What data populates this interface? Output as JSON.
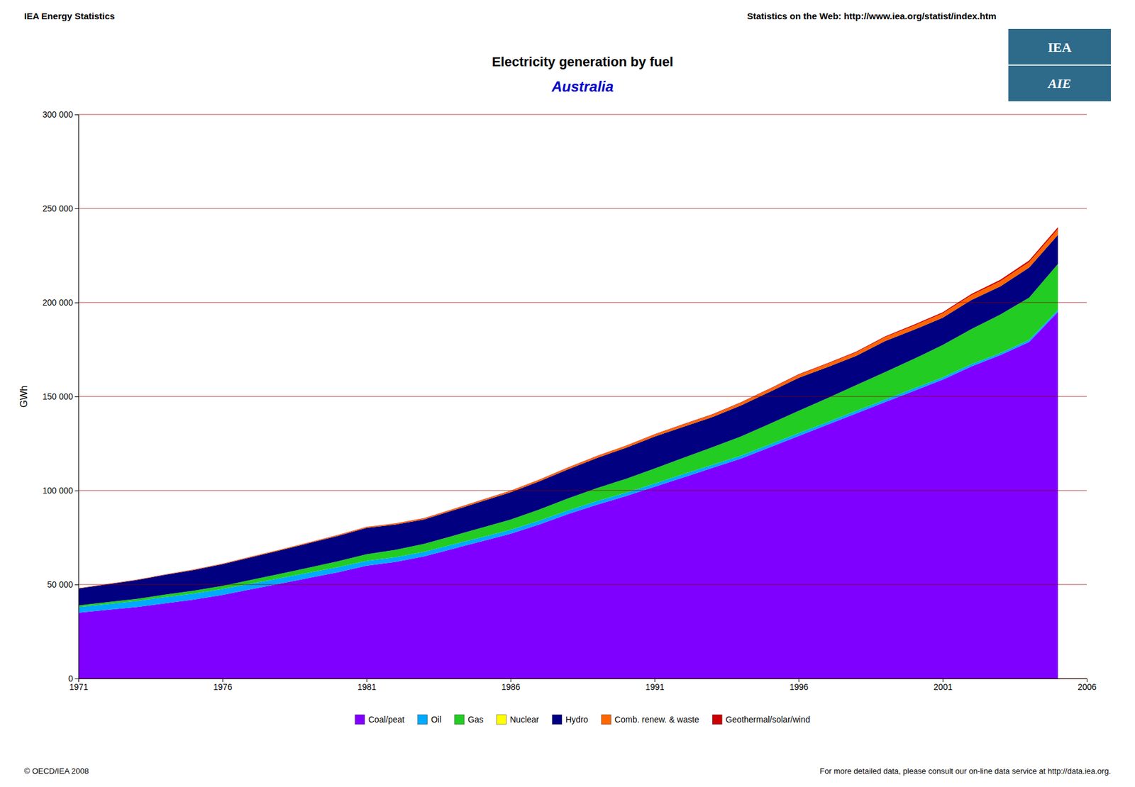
{
  "chart_data": {
    "type": "area",
    "stacked": true,
    "title": "Electricity generation by fuel",
    "subtitle": "Australia",
    "y_label": "GWh",
    "annotations": [
      "IEA Energy Statistics",
      "Statistics on the Web: http://www.iea.org/statist/index.htm",
      "© OECD/IEA 2008",
      "For more detailed data, please consult our on-line data service at http://data.iea.org.",
      "IEA",
      "AIE"
    ],
    "x": [
      1971,
      1972,
      1973,
      1974,
      1975,
      1976,
      1977,
      1978,
      1979,
      1980,
      1981,
      1982,
      1983,
      1984,
      1985,
      1986,
      1987,
      1988,
      1989,
      1990,
      1991,
      1992,
      1993,
      1994,
      1995,
      1996,
      1997,
      1998,
      1999,
      2000,
      2001,
      2002,
      2003,
      2004,
      2005
    ],
    "xlim": [
      1971,
      2006
    ],
    "xticks": [
      1971,
      1976,
      1981,
      1986,
      1991,
      1996,
      2001,
      2006
    ],
    "ylim": [
      0,
      300000
    ],
    "yticks": [
      0,
      {
        "value": 50000,
        "label": "50 000"
      },
      {
        "value": 100000,
        "label": "100 000"
      },
      {
        "value": 150000,
        "label": "150 000"
      },
      {
        "value": 200000,
        "label": "200 000"
      },
      {
        "value": 250000,
        "label": "250 000"
      },
      {
        "value": 300000,
        "label": "300 000"
      }
    ],
    "grid": true,
    "legend": "bottom",
    "series": [
      {
        "name": "Coal/peat",
        "color": "#8000FF",
        "values": [
          35000,
          36500,
          38000,
          40000,
          42000,
          44500,
          47500,
          50500,
          53500,
          56500,
          60000,
          62000,
          65000,
          69000,
          73000,
          77000,
          82000,
          87500,
          92500,
          97000,
          102000,
          107000,
          112000,
          117000,
          123000,
          129000,
          135000,
          141000,
          147000,
          153000,
          159000,
          166000,
          172000,
          179000,
          195000
        ]
      },
      {
        "name": "Oil",
        "color": "#00AAFF",
        "values": [
          3000,
          3100,
          3200,
          3300,
          3200,
          3100,
          3000,
          2900,
          2800,
          2700,
          2600,
          2500,
          2400,
          2300,
          2200,
          2100,
          2000,
          1900,
          1900,
          1800,
          1700,
          1700,
          1600,
          1600,
          1500,
          1500,
          1400,
          1400,
          1300,
          1300,
          1200,
          1200,
          1100,
          1100,
          1000
        ]
      },
      {
        "name": "Gas",
        "color": "#22CC22",
        "values": [
          900,
          1000,
          1100,
          1300,
          1500,
          1700,
          2000,
          2300,
          2700,
          3100,
          3500,
          3900,
          4200,
          4600,
          5000,
          5400,
          5900,
          6400,
          6900,
          7400,
          8000,
          8700,
          9400,
          10200,
          11000,
          11900,
          12700,
          13700,
          14700,
          15700,
          17200,
          18700,
          20500,
          22500,
          24500
        ]
      },
      {
        "name": "Nuclear",
        "color": "#FFFF00",
        "values": [
          0,
          0,
          0,
          0,
          0,
          0,
          0,
          0,
          0,
          0,
          0,
          0,
          0,
          0,
          0,
          0,
          0,
          0,
          0,
          0,
          0,
          0,
          0,
          0,
          0,
          0,
          0,
          0,
          0,
          0,
          0,
          0,
          0,
          0,
          0
        ]
      },
      {
        "name": "Hydro",
        "color": "#000080",
        "values": [
          9000,
          9500,
          10000,
          10500,
          11000,
          11500,
          12000,
          12500,
          13000,
          13500,
          14000,
          13500,
          13000,
          13500,
          14000,
          14500,
          15000,
          15500,
          16000,
          16500,
          17000,
          16500,
          16000,
          16500,
          17000,
          17500,
          16500,
          15500,
          16500,
          15500,
          14500,
          15500,
          15000,
          16000,
          15500
        ]
      },
      {
        "name": "Comb. renew. & waste",
        "color": "#FF6600",
        "values": [
          150,
          170,
          190,
          210,
          240,
          270,
          310,
          350,
          390,
          440,
          490,
          540,
          600,
          650,
          710,
          770,
          840,
          910,
          980,
          1060,
          1140,
          1230,
          1330,
          1430,
          1540,
          1660,
          1780,
          1910,
          2050,
          2200,
          2360,
          2530,
          2710,
          2900,
          3090
        ]
      },
      {
        "name": "Geothermal/solar/wind",
        "color": "#CC0000",
        "values": [
          40,
          45,
          50,
          55,
          60,
          65,
          70,
          75,
          80,
          85,
          90,
          95,
          100,
          105,
          110,
          115,
          120,
          130,
          140,
          150,
          160,
          170,
          190,
          210,
          240,
          270,
          310,
          360,
          420,
          490,
          570,
          660,
          760,
          870,
          990
        ]
      }
    ]
  }
}
